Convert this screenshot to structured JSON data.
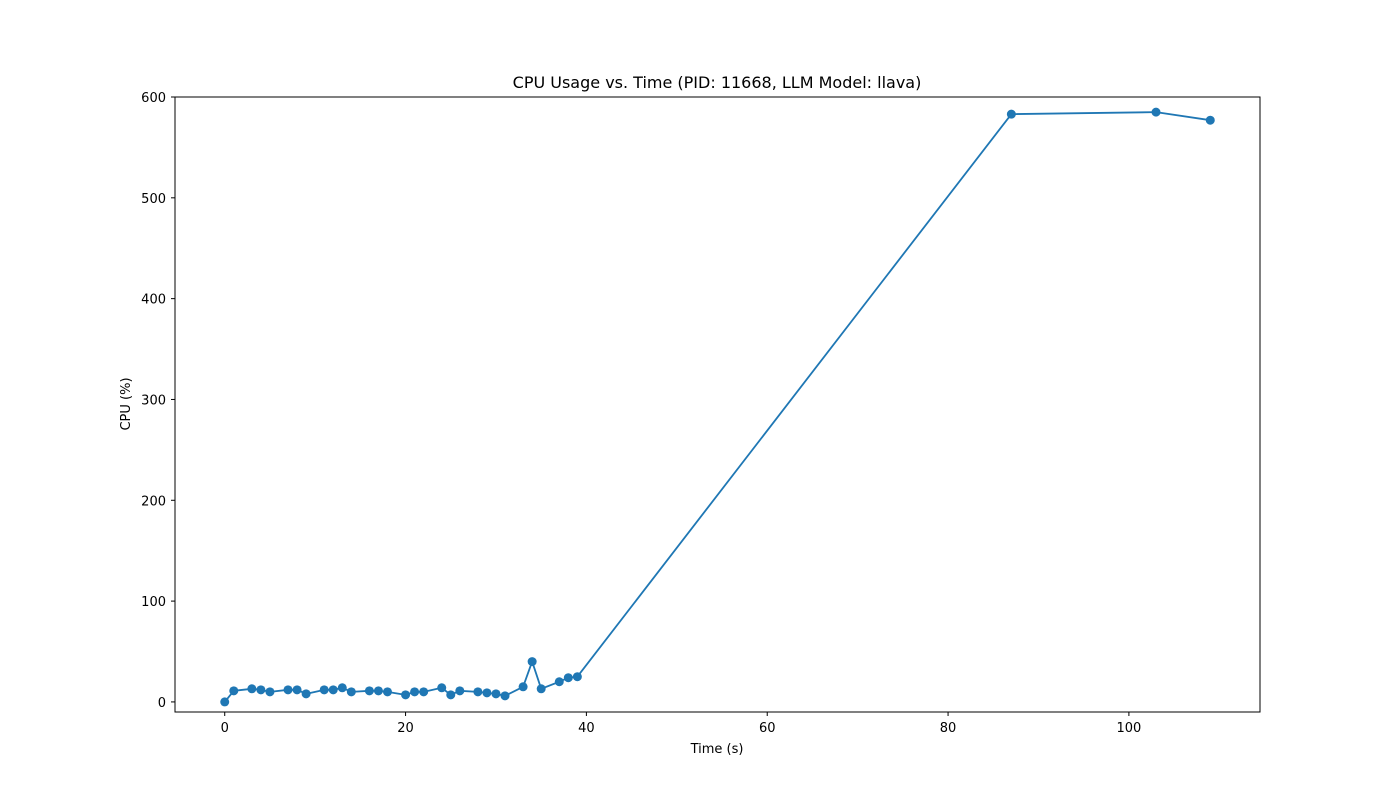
{
  "chart_data": {
    "type": "line",
    "title": "CPU Usage vs. Time (PID: 11668, LLM Model: llava)",
    "xlabel": "Time (s)",
    "ylabel": "CPU (%)",
    "xlim": [
      -5.5,
      114.5
    ],
    "ylim": [
      -10,
      600
    ],
    "xticks": [
      0,
      20,
      40,
      60,
      80,
      100
    ],
    "yticks": [
      0,
      100,
      200,
      300,
      400,
      500,
      600
    ],
    "grid": false,
    "legend": "none",
    "series": [
      {
        "color": "#1f77b4",
        "marker": "circle",
        "x": [
          0,
          1,
          3,
          4,
          5,
          7,
          8,
          9,
          11,
          12,
          13,
          14,
          16,
          17,
          18,
          20,
          21,
          22,
          24,
          25,
          26,
          28,
          29,
          30,
          31,
          33,
          34,
          35,
          37,
          38,
          39,
          87,
          103,
          109
        ],
        "y": [
          0,
          11,
          13,
          12,
          10,
          12,
          12,
          8,
          12,
          12,
          14,
          10,
          11,
          11,
          10,
          7,
          10,
          10,
          14,
          7,
          11,
          10,
          9,
          8,
          6,
          15,
          40,
          13,
          20,
          24,
          25,
          583,
          585,
          577
        ]
      }
    ]
  }
}
